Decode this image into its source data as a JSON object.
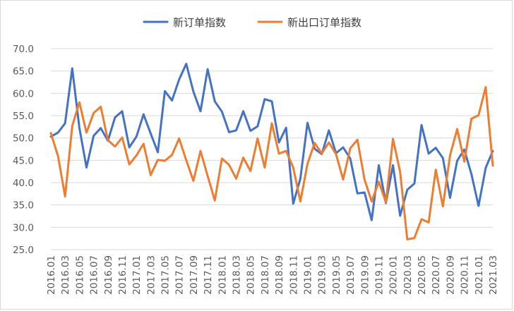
{
  "chart_data": {
    "type": "line",
    "title": "",
    "xlabel": "",
    "ylabel": "",
    "ylim": [
      25.0,
      70.0
    ],
    "yticks": [
      "70.0",
      "65.0",
      "60.0",
      "55.0",
      "50.0",
      "45.0",
      "40.0",
      "35.0",
      "30.0",
      "25.0"
    ],
    "yticks_values": [
      70,
      65,
      60,
      55,
      50,
      45,
      40,
      35,
      30,
      25
    ],
    "grid": "horizontal",
    "legend": "top-center",
    "xtick_labels": [
      "2016.01",
      "2016.03",
      "2016.05",
      "2016.07",
      "2016.09",
      "2016.11",
      "2017.01",
      "2017.03",
      "2017.05",
      "2017.07",
      "2017.09",
      "2017.11",
      "2018.01",
      "2018.03",
      "2018.05",
      "2018.07",
      "2018.09",
      "2018.11",
      "2019.01",
      "2019.03",
      "2019.05",
      "2019.07",
      "2019.09",
      "2019.11",
      "2020.01",
      "2020.03",
      "2020.05",
      "2020.07",
      "2020.09",
      "2020.11",
      "2021.01",
      "2021.03"
    ],
    "x": [
      "2016.01",
      "2016.02",
      "2016.03",
      "2016.04",
      "2016.05",
      "2016.06",
      "2016.07",
      "2016.08",
      "2016.09",
      "2016.10",
      "2016.11",
      "2016.12",
      "2017.01",
      "2017.02",
      "2017.03",
      "2017.04",
      "2017.05",
      "2017.06",
      "2017.07",
      "2017.08",
      "2017.09",
      "2017.10",
      "2017.11",
      "2017.12",
      "2018.01",
      "2018.02",
      "2018.03",
      "2018.04",
      "2018.05",
      "2018.06",
      "2018.07",
      "2018.08",
      "2018.09",
      "2018.10",
      "2018.11",
      "2018.12",
      "2019.01",
      "2019.02",
      "2019.03",
      "2019.04",
      "2019.05",
      "2019.06",
      "2019.07",
      "2019.08",
      "2019.09",
      "2019.10",
      "2019.11",
      "2019.12",
      "2020.01",
      "2020.02",
      "2020.03",
      "2020.04",
      "2020.05",
      "2020.06",
      "2020.07",
      "2020.08",
      "2020.09",
      "2020.10",
      "2020.11",
      "2020.12",
      "2021.01",
      "2021.02",
      "2021.03"
    ],
    "series": [
      {
        "name": "新订单指数",
        "color": "#4472c4",
        "values": [
          50.3,
          51.2,
          53.3,
          65.6,
          52.3,
          43.4,
          50.5,
          52.2,
          49.4,
          54.6,
          56.0,
          47.9,
          50.3,
          55.3,
          51.0,
          46.8,
          60.5,
          58.4,
          63.1,
          66.6,
          60.4,
          56.0,
          65.4,
          58.2,
          55.9,
          51.3,
          51.7,
          56.0,
          51.6,
          52.6,
          58.7,
          58.2,
          49.0,
          52.3,
          35.3,
          40.9,
          53.4,
          47.6,
          46.4,
          51.7,
          46.6,
          47.9,
          45.4,
          37.6,
          37.8,
          31.6,
          43.9,
          35.4,
          43.9,
          32.6,
          38.4,
          39.8,
          52.9,
          46.5,
          47.8,
          45.5,
          36.6,
          44.9,
          47.4,
          41.9,
          34.8,
          43.3,
          47.1
        ]
      },
      {
        "name": "新出口订单指数",
        "color": "#ed7d31",
        "values": [
          51.1,
          46.0,
          36.9,
          52.7,
          58.0,
          51.2,
          55.6,
          57.0,
          49.5,
          48.1,
          50.1,
          44.1,
          46.1,
          48.7,
          41.7,
          45.1,
          44.9,
          46.2,
          49.9,
          45.0,
          40.4,
          47.1,
          41.5,
          36.0,
          45.4,
          44.0,
          40.9,
          45.6,
          42.6,
          49.9,
          43.4,
          53.3,
          46.5,
          47.1,
          43.4,
          35.8,
          44.2,
          48.9,
          46.5,
          49.0,
          46.4,
          40.7,
          47.7,
          49.6,
          40.7,
          35.8,
          40.2,
          35.6,
          49.8,
          42.4,
          27.3,
          27.6,
          31.8,
          31.1,
          42.9,
          34.7,
          46.1,
          52.0,
          44.7,
          54.3,
          55.1,
          61.4,
          43.8
        ]
      }
    ]
  }
}
